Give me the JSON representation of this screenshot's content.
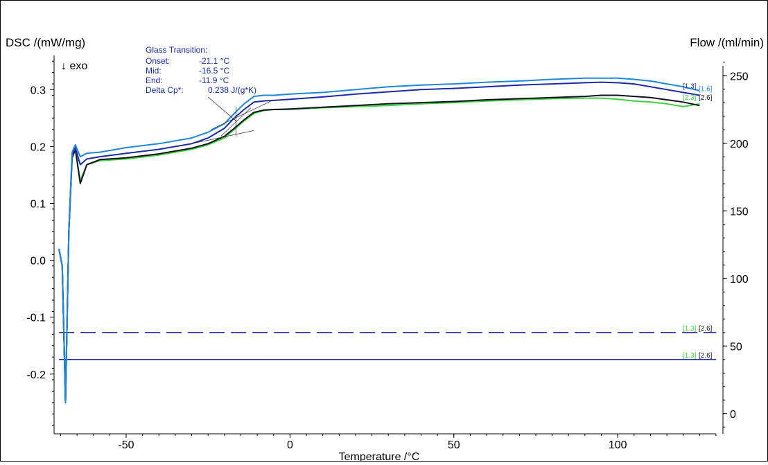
{
  "chart_data": {
    "type": "line",
    "ylabel_left": "DSC /(mW/mg)",
    "ylabel_right": "Flow /(ml/min)",
    "xlabel": "Temperature /°C",
    "exo_label": "↓ exo",
    "xlim": [
      -72,
      130
    ],
    "ylim_left": [
      -0.305,
      0.36
    ],
    "ylim_right": [
      -15,
      265
    ],
    "x_ticks": [
      -50,
      0,
      50,
      100
    ],
    "x_tick_labels": [
      "-50",
      "0",
      "50",
      "100"
    ],
    "y_left_ticks": [
      0.3,
      0.2,
      0.1,
      0.0,
      -0.1,
      -0.2
    ],
    "y_left_tick_labels": [
      "0.3",
      "0.2",
      "0.1",
      "0.0",
      "-0.1",
      "-0.2"
    ],
    "y_right_ticks": [
      250,
      200,
      150,
      100,
      50,
      0
    ],
    "y_right_tick_labels": [
      "250",
      "200",
      "150",
      "100",
      "50",
      "0"
    ],
    "annotation": {
      "title": "Glass Transition:",
      "rows": [
        {
          "label": "Onset:",
          "value": "-21.1 °C"
        },
        {
          "label": "Mid:",
          "value": "-16.5 °C"
        },
        {
          "label": "End:",
          "value": "-11.9 °C"
        },
        {
          "label": "Delta Cp*:",
          "value": "0.238 J/(g*K)"
        }
      ],
      "onset_x": -21.1,
      "mid_x": -16.5,
      "end_x": -11.9
    },
    "series": [
      {
        "color": "#1e88d8",
        "x": [
          -70.5,
          -69.5,
          -68.5,
          -67.5,
          -66.5,
          -65.5,
          -64,
          -62,
          -58,
          -50,
          -40,
          -30,
          -25,
          -20,
          -17,
          -14,
          -11,
          -8,
          -5,
          0,
          10,
          20,
          30,
          40,
          50,
          60,
          70,
          80,
          90,
          95,
          100,
          105,
          110,
          115,
          120,
          125
        ],
        "y": [
          0.02,
          -0.01,
          -0.25,
          0.05,
          0.19,
          0.203,
          0.182,
          0.188,
          0.19,
          0.198,
          0.205,
          0.215,
          0.225,
          0.24,
          0.258,
          0.275,
          0.288,
          0.29,
          0.29,
          0.292,
          0.295,
          0.3,
          0.305,
          0.308,
          0.31,
          0.313,
          0.315,
          0.318,
          0.32,
          0.32,
          0.32,
          0.318,
          0.315,
          0.31,
          0.305,
          0.298
        ]
      },
      {
        "color": "#1a2aa8",
        "x": [
          -70.5,
          -69.5,
          -68.5,
          -67.5,
          -66.5,
          -65.5,
          -64,
          -62,
          -58,
          -50,
          -40,
          -30,
          -25,
          -20,
          -17,
          -14,
          -11,
          -8,
          -5,
          0,
          10,
          20,
          30,
          40,
          50,
          60,
          70,
          80,
          90,
          95,
          100,
          105,
          110,
          115,
          120,
          125
        ],
        "y": [
          0.02,
          -0.01,
          -0.25,
          0.05,
          0.185,
          0.198,
          0.168,
          0.178,
          0.182,
          0.188,
          0.195,
          0.205,
          0.215,
          0.232,
          0.25,
          0.265,
          0.278,
          0.28,
          0.281,
          0.283,
          0.287,
          0.292,
          0.296,
          0.3,
          0.302,
          0.305,
          0.308,
          0.31,
          0.312,
          0.313,
          0.312,
          0.31,
          0.305,
          0.3,
          0.295,
          0.29
        ]
      },
      {
        "color": "#3bd33b",
        "x": [
          -70.5,
          -69.5,
          -68.5,
          -67.5,
          -66.5,
          -65.5,
          -64,
          -62,
          -58,
          -50,
          -40,
          -30,
          -25,
          -20,
          -17,
          -14,
          -11,
          -8,
          -5,
          0,
          10,
          20,
          30,
          40,
          50,
          60,
          70,
          80,
          90,
          95,
          100,
          105,
          110,
          115,
          120,
          125
        ],
        "y": [
          0.02,
          -0.01,
          -0.25,
          0.05,
          0.18,
          0.195,
          0.14,
          0.168,
          0.175,
          0.178,
          0.185,
          0.195,
          0.203,
          0.215,
          0.23,
          0.245,
          0.258,
          0.263,
          0.265,
          0.265,
          0.268,
          0.27,
          0.272,
          0.275,
          0.277,
          0.28,
          0.282,
          0.284,
          0.285,
          0.285,
          0.283,
          0.28,
          0.278,
          0.275,
          0.27,
          0.275
        ]
      },
      {
        "color": "#111122",
        "x": [
          -70.5,
          -69.5,
          -68.5,
          -67.5,
          -66.5,
          -65.5,
          -64,
          -62,
          -58,
          -50,
          -40,
          -30,
          -25,
          -20,
          -17,
          -14,
          -11,
          -8,
          -5,
          0,
          10,
          20,
          30,
          40,
          50,
          60,
          70,
          80,
          90,
          95,
          100,
          105,
          110,
          115,
          120,
          125
        ],
        "y": [
          0.02,
          -0.01,
          -0.25,
          0.05,
          0.18,
          0.195,
          0.135,
          0.168,
          0.177,
          0.18,
          0.187,
          0.197,
          0.205,
          0.218,
          0.232,
          0.247,
          0.26,
          0.264,
          0.265,
          0.266,
          0.269,
          0.272,
          0.275,
          0.277,
          0.279,
          0.282,
          0.284,
          0.286,
          0.288,
          0.29,
          0.29,
          0.288,
          0.286,
          0.282,
          0.278,
          0.272
        ]
      }
    ],
    "series_end_labels": [
      {
        "text": "[1.3]",
        "color": "#1a2aa8",
        "y": 0.3
      },
      {
        "text": "[1.6]",
        "color": "#1e88d8",
        "y": 0.296
      },
      {
        "text": "[2.3]",
        "color": "#3bd33b",
        "y": 0.282
      },
      {
        "text": "[2.6]",
        "color": "#111122",
        "y": 0.282
      }
    ],
    "flow_lines": [
      {
        "value": 60,
        "style": "dashed",
        "color": "#1a2aa8",
        "labels": [
          {
            "text": "[1.3]",
            "color": "#3bd33b"
          },
          {
            "text": "[2.6]",
            "color": "#111122"
          }
        ]
      },
      {
        "value": 40,
        "style": "solid",
        "color": "#1a2aa8",
        "labels": [
          {
            "text": "[1.3]",
            "color": "#3bd33b"
          },
          {
            "text": "[2.6]",
            "color": "#111122"
          }
        ]
      }
    ]
  }
}
